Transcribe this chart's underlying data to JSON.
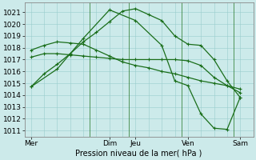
{
  "xlabel": "Pression niveau de la mer( hPa )",
  "background_color": "#cceaea",
  "grid_color": "#99cccc",
  "line_color": "#1a6e1a",
  "ylim": [
    1010.5,
    1021.8
  ],
  "yticks": [
    1011,
    1012,
    1013,
    1014,
    1015,
    1016,
    1017,
    1018,
    1019,
    1020,
    1021
  ],
  "xtick_labels": [
    "Mer",
    "Dim",
    "Jeu",
    "Ven",
    "Sam"
  ],
  "xtick_positions": [
    0,
    6,
    8,
    12,
    16
  ],
  "xlim": [
    -0.5,
    17
  ],
  "vline_positions": [
    4.5,
    7.5,
    11.5,
    15.5
  ],
  "series1_x": [
    0,
    1,
    2,
    3,
    4,
    5,
    6,
    7,
    8,
    9,
    10,
    11,
    12,
    13,
    14,
    15,
    16
  ],
  "series1_y": [
    1014.7,
    1015.8,
    1016.6,
    1017.5,
    1018.5,
    1019.3,
    1020.2,
    1021.1,
    1021.3,
    1020.8,
    1020.3,
    1019.0,
    1018.3,
    1018.2,
    1017.0,
    1015.2,
    1013.8
  ],
  "series2_x": [
    0,
    1,
    2,
    3,
    4,
    5,
    6,
    7,
    8,
    9,
    10,
    11,
    12,
    13,
    14,
    15,
    16
  ],
  "series2_y": [
    1017.2,
    1017.5,
    1017.5,
    1017.4,
    1017.3,
    1017.2,
    1017.1,
    1017.0,
    1017.0,
    1017.0,
    1017.0,
    1017.0,
    1016.9,
    1016.5,
    1015.5,
    1014.8,
    1014.2
  ],
  "series3_x": [
    0,
    1,
    2,
    3,
    4,
    5,
    6,
    7,
    8,
    9,
    10,
    11,
    12,
    13,
    14,
    15,
    16
  ],
  "series3_y": [
    1017.8,
    1018.2,
    1018.5,
    1018.4,
    1018.3,
    1017.8,
    1017.3,
    1016.8,
    1016.5,
    1016.3,
    1016.0,
    1015.8,
    1015.5,
    1015.2,
    1015.0,
    1014.8,
    1014.5
  ],
  "series4_x": [
    0,
    2,
    4,
    6,
    8,
    10,
    11,
    12,
    13,
    14,
    15,
    16
  ],
  "series4_y": [
    1014.7,
    1016.2,
    1018.8,
    1021.2,
    1020.3,
    1018.2,
    1015.2,
    1014.8,
    1012.4,
    1011.2,
    1011.1,
    1013.8
  ],
  "fontsize": 6.5,
  "xlabel_fontsize": 7,
  "lw": 0.9,
  "marker_size": 3,
  "marker_lw": 0.8
}
